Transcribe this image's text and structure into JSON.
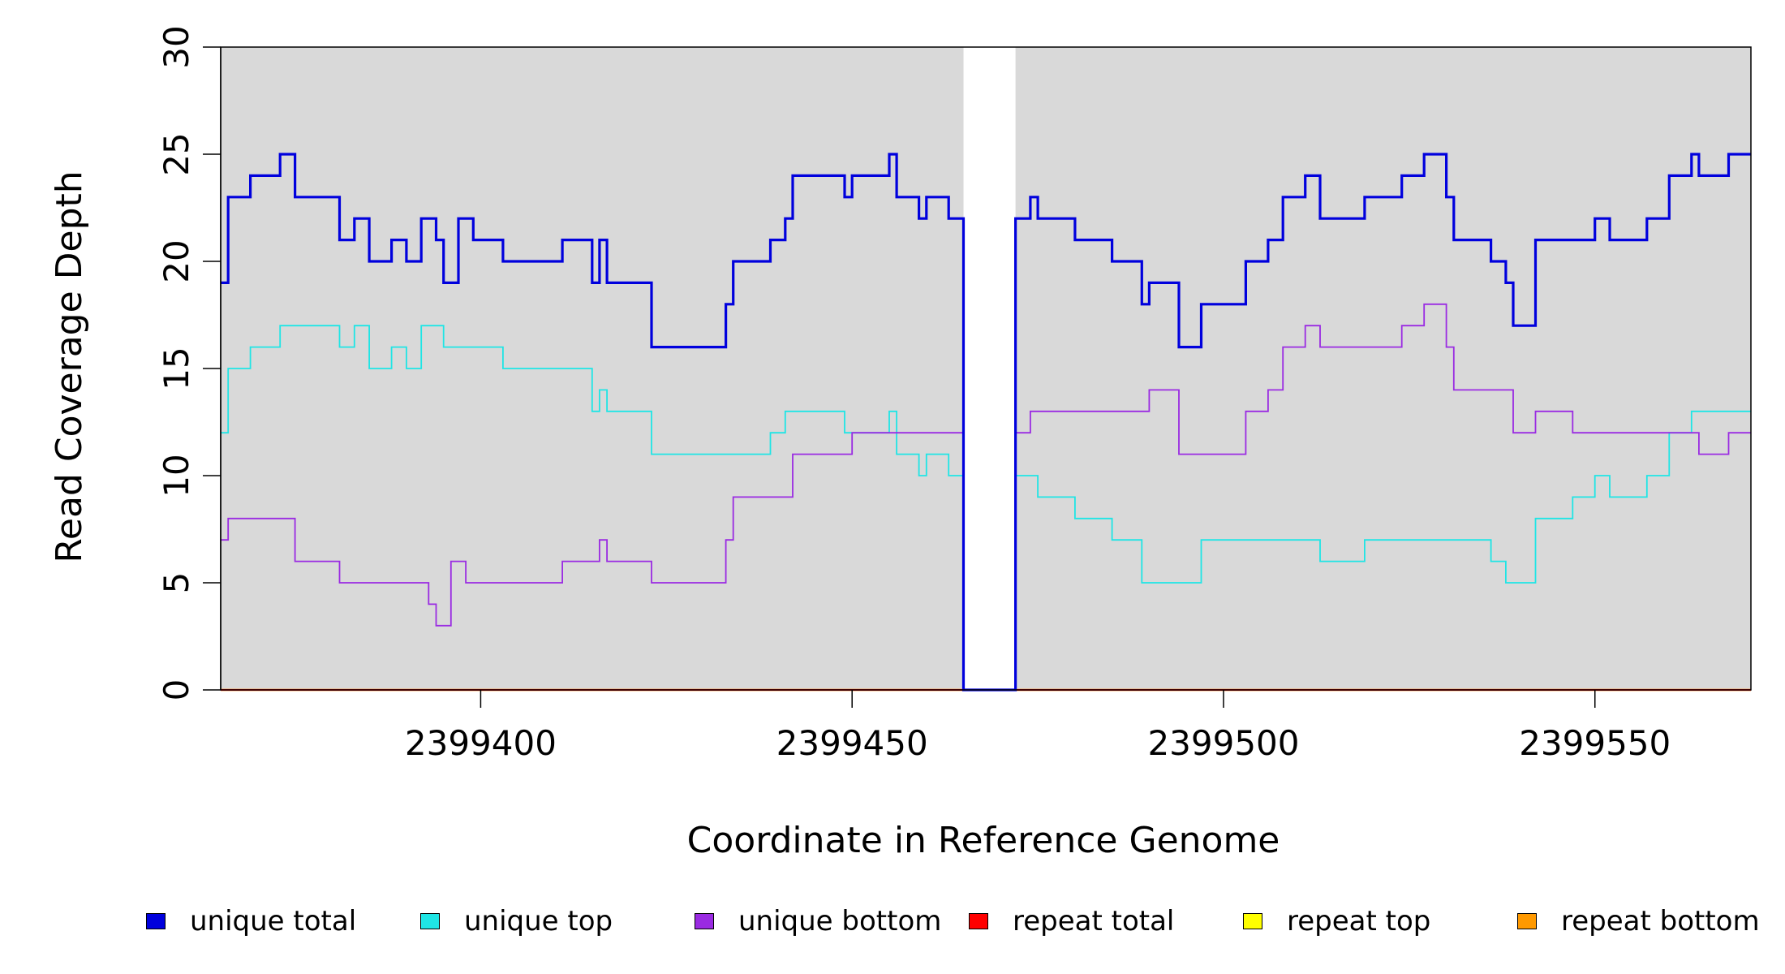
{
  "chart_data": {
    "type": "line",
    "title": "",
    "xlabel": "Coordinate in Reference Genome",
    "ylabel": "Read Coverage Depth",
    "xlim": [
      2399365,
      2399571
    ],
    "ylim": [
      0,
      30
    ],
    "xticks": [
      "2399400",
      "2399450",
      "2399500",
      "2399550"
    ],
    "yticks": [
      "0",
      "5",
      "10",
      "15",
      "20",
      "25",
      "30"
    ],
    "panel_background": "#d9d9d9",
    "gap_region": [
      2399465,
      2399472
    ],
    "legend_position": "bottom",
    "step": true,
    "series": [
      {
        "name": "unique total",
        "color": "#0000dd",
        "points": [
          [
            2399365,
            19
          ],
          [
            2399366,
            23
          ],
          [
            2399369,
            24
          ],
          [
            2399373,
            25
          ],
          [
            2399375,
            23
          ],
          [
            2399381,
            21
          ],
          [
            2399383,
            22
          ],
          [
            2399385,
            20
          ],
          [
            2399388,
            21
          ],
          [
            2399390,
            20
          ],
          [
            2399392,
            22
          ],
          [
            2399394,
            21
          ],
          [
            2399395,
            19
          ],
          [
            2399397,
            22
          ],
          [
            2399399,
            21
          ],
          [
            2399403,
            20
          ],
          [
            2399411,
            21
          ],
          [
            2399415,
            19
          ],
          [
            2399416,
            21
          ],
          [
            2399417,
            19
          ],
          [
            2399423,
            16
          ],
          [
            2399433,
            18
          ],
          [
            2399434,
            20
          ],
          [
            2399439,
            21
          ],
          [
            2399441,
            22
          ],
          [
            2399442,
            24
          ],
          [
            2399449,
            23
          ],
          [
            2399450,
            24
          ],
          [
            2399455,
            25
          ],
          [
            2399456,
            23
          ],
          [
            2399459,
            22
          ],
          [
            2399460,
            23
          ],
          [
            2399463,
            22
          ],
          [
            2399465,
            0
          ],
          [
            2399472,
            22
          ],
          [
            2399474,
            23
          ],
          [
            2399475,
            22
          ],
          [
            2399480,
            21
          ],
          [
            2399485,
            20
          ],
          [
            2399489,
            18
          ],
          [
            2399490,
            19
          ],
          [
            2399494,
            16
          ],
          [
            2399497,
            18
          ],
          [
            2399503,
            20
          ],
          [
            2399506,
            21
          ],
          [
            2399508,
            23
          ],
          [
            2399511,
            24
          ],
          [
            2399513,
            22
          ],
          [
            2399519,
            23
          ],
          [
            2399524,
            24
          ],
          [
            2399527,
            25
          ],
          [
            2399530,
            23
          ],
          [
            2399531,
            21
          ],
          [
            2399536,
            20
          ],
          [
            2399538,
            19
          ],
          [
            2399539,
            17
          ],
          [
            2399542,
            21
          ],
          [
            2399550,
            22
          ],
          [
            2399552,
            21
          ],
          [
            2399557,
            22
          ],
          [
            2399560,
            24
          ],
          [
            2399563,
            25
          ],
          [
            2399564,
            24
          ],
          [
            2399568,
            25
          ]
        ]
      },
      {
        "name": "unique top",
        "color": "#1fe5e5",
        "points": [
          [
            2399365,
            12
          ],
          [
            2399366,
            15
          ],
          [
            2399369,
            16
          ],
          [
            2399373,
            17
          ],
          [
            2399381,
            16
          ],
          [
            2399383,
            17
          ],
          [
            2399385,
            15
          ],
          [
            2399388,
            16
          ],
          [
            2399390,
            15
          ],
          [
            2399392,
            17
          ],
          [
            2399395,
            16
          ],
          [
            2399403,
            15
          ],
          [
            2399415,
            13
          ],
          [
            2399416,
            14
          ],
          [
            2399417,
            13
          ],
          [
            2399423,
            11
          ],
          [
            2399434,
            11
          ],
          [
            2399439,
            12
          ],
          [
            2399441,
            13
          ],
          [
            2399449,
            12
          ],
          [
            2399450,
            12
          ],
          [
            2399455,
            13
          ],
          [
            2399456,
            11
          ],
          [
            2399459,
            10
          ],
          [
            2399460,
            11
          ],
          [
            2399463,
            10
          ],
          [
            2399465,
            0
          ],
          [
            2399472,
            10
          ],
          [
            2399475,
            9
          ],
          [
            2399480,
            8
          ],
          [
            2399485,
            7
          ],
          [
            2399489,
            5
          ],
          [
            2399497,
            7
          ],
          [
            2399513,
            6
          ],
          [
            2399519,
            7
          ],
          [
            2399536,
            6
          ],
          [
            2399538,
            5
          ],
          [
            2399542,
            8
          ],
          [
            2399547,
            9
          ],
          [
            2399550,
            10
          ],
          [
            2399552,
            9
          ],
          [
            2399557,
            10
          ],
          [
            2399560,
            12
          ],
          [
            2399563,
            13
          ]
        ]
      },
      {
        "name": "unique bottom",
        "color": "#9a2be2",
        "points": [
          [
            2399365,
            7
          ],
          [
            2399366,
            8
          ],
          [
            2399375,
            6
          ],
          [
            2399381,
            5
          ],
          [
            2399393,
            4
          ],
          [
            2399394,
            3
          ],
          [
            2399396,
            6
          ],
          [
            2399398,
            5
          ],
          [
            2399411,
            6
          ],
          [
            2399416,
            7
          ],
          [
            2399417,
            6
          ],
          [
            2399423,
            5
          ],
          [
            2399433,
            7
          ],
          [
            2399434,
            9
          ],
          [
            2399442,
            11
          ],
          [
            2399450,
            12
          ],
          [
            2399465,
            0
          ],
          [
            2399472,
            12
          ],
          [
            2399474,
            13
          ],
          [
            2399490,
            14
          ],
          [
            2399494,
            11
          ],
          [
            2399503,
            13
          ],
          [
            2399506,
            14
          ],
          [
            2399508,
            16
          ],
          [
            2399511,
            17
          ],
          [
            2399513,
            16
          ],
          [
            2399524,
            17
          ],
          [
            2399527,
            18
          ],
          [
            2399530,
            16
          ],
          [
            2399531,
            14
          ],
          [
            2399539,
            12
          ],
          [
            2399542,
            13
          ],
          [
            2399547,
            12
          ],
          [
            2399564,
            11
          ],
          [
            2399568,
            12
          ]
        ]
      },
      {
        "name": "repeat total",
        "color": "#ff0000",
        "points": [
          [
            2399365,
            0
          ],
          [
            2399571,
            0
          ]
        ]
      },
      {
        "name": "repeat top",
        "color": "#ffff00",
        "points": [
          [
            2399365,
            0
          ],
          [
            2399571,
            0
          ]
        ]
      },
      {
        "name": "repeat bottom",
        "color": "#ff9900",
        "points": [
          [
            2399365,
            0
          ],
          [
            2399571,
            0
          ]
        ]
      }
    ]
  }
}
